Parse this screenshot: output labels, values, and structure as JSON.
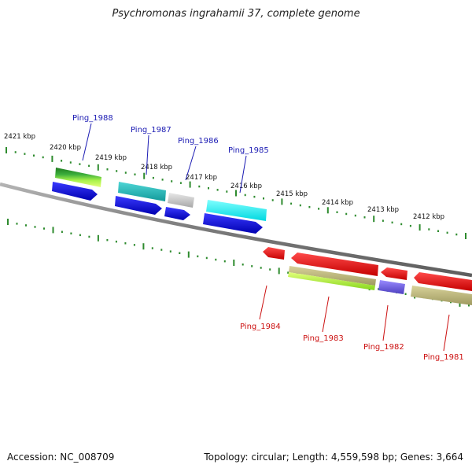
{
  "title": "Psychromonas ingrahamii 37, complete genome",
  "footer": {
    "accession": "Accession: NC_008709",
    "summary": "Topology: circular; Length: 4,559,598 bp; Genes: 3,664"
  },
  "colors": {
    "backbone": "#808080",
    "tick": "#2e8b2e",
    "label_forward": "#1b1bb3",
    "label_reverse": "#cc1111"
  },
  "ticks": [
    "2421 kbp",
    "2420 kbp",
    "2419 kbp",
    "2418 kbp",
    "2417 kbp",
    "2416 kbp",
    "2415 kbp",
    "2414 kbp",
    "2413 kbp",
    "2412 kbp"
  ],
  "forward_genes": [
    {
      "name": "Ping_1988"
    },
    {
      "name": "Ping_1987"
    },
    {
      "name": "Ping_1986"
    },
    {
      "name": "Ping_1985"
    }
  ],
  "reverse_genes": [
    {
      "name": "Ping_1984"
    },
    {
      "name": "Ping_1983"
    },
    {
      "name": "Ping_1982"
    },
    {
      "name": "Ping_1981"
    }
  ]
}
